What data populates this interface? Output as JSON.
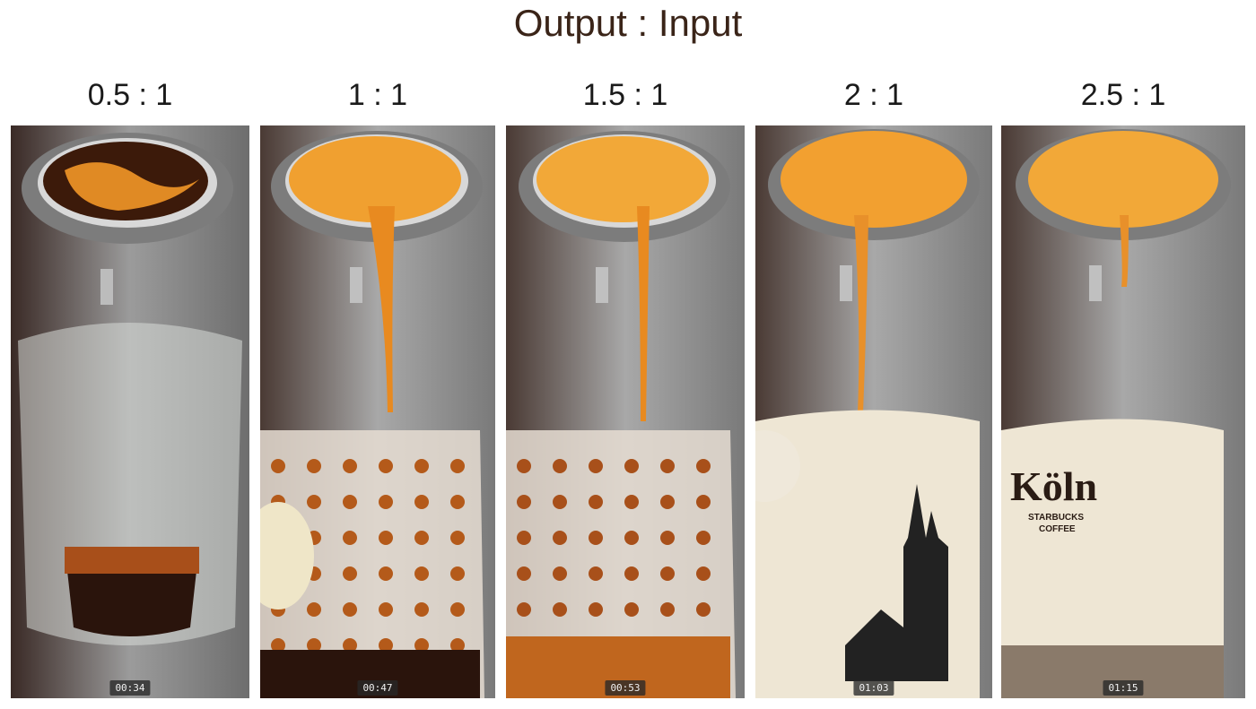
{
  "title": "Output : Input",
  "panels": [
    {
      "ratio": "0.5 : 1",
      "time": "00:34",
      "vessel": "glass"
    },
    {
      "ratio": "1 : 1",
      "time": "00:47",
      "vessel": "dotted"
    },
    {
      "ratio": "1.5 : 1",
      "time": "00:53",
      "vessel": "dotted"
    },
    {
      "ratio": "2 : 1",
      "time": "01:03",
      "vessel": "mug-cathedral"
    },
    {
      "ratio": "2.5 : 1",
      "time": "01:15",
      "vessel": "mug-koln"
    }
  ],
  "mug_text": {
    "city": "Köln",
    "brand": "STARBUCKS",
    "brand2": "COFFEE"
  },
  "colors": {
    "crema": "#f0a030",
    "coffee": "#2a140c",
    "steel": "#8f8f8f",
    "mug": "#eee6d4"
  }
}
